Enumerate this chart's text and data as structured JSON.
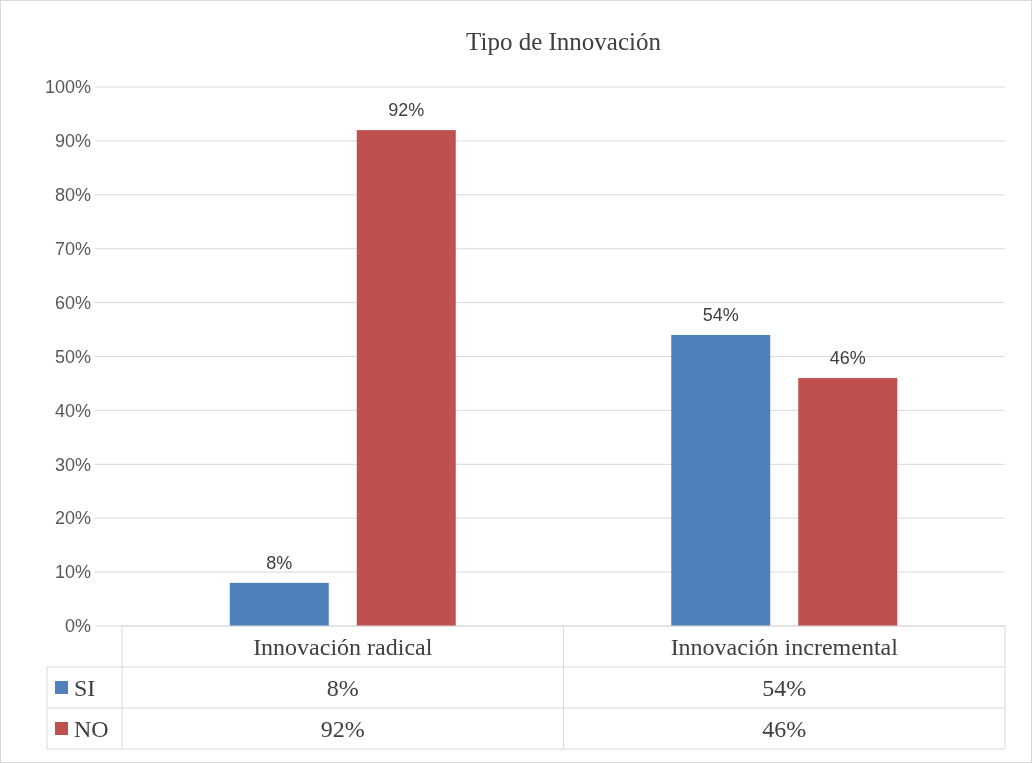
{
  "chart_data": {
    "type": "bar",
    "title": "Tipo de Innovación",
    "categories": [
      "Innovación radical",
      "Innovación incremental"
    ],
    "series": [
      {
        "name": "SI",
        "color": "#4f81bd",
        "values": [
          8,
          54
        ],
        "value_labels": [
          "8%",
          "54%"
        ]
      },
      {
        "name": "NO",
        "color": "#c0504d",
        "values": [
          92,
          46
        ],
        "value_labels": [
          "92%",
          "46%"
        ]
      }
    ],
    "ylim": [
      0,
      100
    ],
    "yticks": [
      {
        "value": 0,
        "label": "0%"
      },
      {
        "value": 10,
        "label": "10%"
      },
      {
        "value": 20,
        "label": "20%"
      },
      {
        "value": 30,
        "label": "30%"
      },
      {
        "value": 40,
        "label": "40%"
      },
      {
        "value": 50,
        "label": "50%"
      },
      {
        "value": 60,
        "label": "60%"
      },
      {
        "value": 70,
        "label": "70%"
      },
      {
        "value": 80,
        "label": "80%"
      },
      {
        "value": 90,
        "label": "90%"
      },
      {
        "value": 100,
        "label": "100%"
      }
    ],
    "grid": "y",
    "legend": "bottom"
  }
}
